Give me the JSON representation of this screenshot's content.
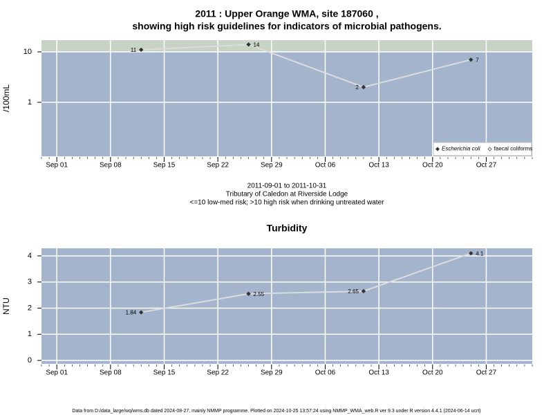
{
  "chart_data": [
    {
      "type": "line",
      "title": [
        "2011 : Upper Orange WMA, site 187060 ,",
        "showing high risk guidelines for indicators of microbial pathogens."
      ],
      "ylabel": "/100mL",
      "log": true,
      "high_risk_above": 10,
      "band_color": "#c6d3c5",
      "x": [
        "2011-09-12",
        "2011-09-26",
        "2011-10-11",
        "2011-10-25"
      ],
      "series": [
        {
          "name": "Escherichia coli",
          "color": "#333333",
          "values": [
            11,
            14,
            2,
            7
          ]
        },
        {
          "name": "faecal coliforms",
          "color": "#333333",
          "values": [
            null,
            null,
            null,
            null
          ]
        }
      ],
      "legend": "bottom right",
      "xlim": [
        "2011-08-30",
        "2011-11-02"
      ],
      "xticks": [
        {
          "value": "2011-09-01",
          "label": "Sep 01"
        },
        {
          "value": "2011-09-08",
          "label": "Sep 08"
        },
        {
          "value": "2011-09-15",
          "label": "Sep 15"
        },
        {
          "value": "2011-09-22",
          "label": "Sep 22"
        },
        {
          "value": "2011-09-29",
          "label": "Sep 29"
        },
        {
          "value": "2011-10-06",
          "label": "Oct 06"
        },
        {
          "value": "2011-10-13",
          "label": "Oct 13"
        },
        {
          "value": "2011-10-20",
          "label": "Oct 20"
        },
        {
          "value": "2011-10-27",
          "label": "Oct 27"
        }
      ],
      "ylim": [
        0.085,
        17.1
      ],
      "yticks": [
        1,
        10
      ],
      "grid": true,
      "notes": [
        "2011-09-01 to 2011-10-31",
        "Tributary of Caledon at Riverside Lodge",
        "<=10 low-med risk; >10 high risk when drinking untreated water"
      ]
    },
    {
      "type": "line",
      "title": [
        "Turbidity"
      ],
      "ylabel": "NTU",
      "log": false,
      "x": [
        "2011-09-12",
        "2011-09-26",
        "2011-10-11",
        "2011-10-25"
      ],
      "series": [
        {
          "color": "#333333",
          "values": [
            1.84,
            2.55,
            2.65,
            4.1
          ]
        }
      ],
      "xlim": [
        "2011-08-30",
        "2011-11-02"
      ],
      "xticks": [
        {
          "value": "2011-09-01",
          "label": "Sep 01"
        },
        {
          "value": "2011-09-08",
          "label": "Sep 08"
        },
        {
          "value": "2011-09-15",
          "label": "Sep 15"
        },
        {
          "value": "2011-09-22",
          "label": "Sep 22"
        },
        {
          "value": "2011-09-29",
          "label": "Sep 29"
        },
        {
          "value": "2011-10-06",
          "label": "Oct 06"
        },
        {
          "value": "2011-10-13",
          "label": "Oct 13"
        },
        {
          "value": "2011-10-20",
          "label": "Oct 20"
        },
        {
          "value": "2011-10-27",
          "label": "Oct 27"
        }
      ],
      "ylim": [
        -0.13,
        4.29
      ],
      "yticks": [
        0,
        1,
        2,
        3,
        4
      ],
      "grid": true
    }
  ],
  "footer": "Data from D:/data_large/wq/wms.db dated 2024-08-27, mainly NMMP programme. Plotted on 2024-10-25 13:57:24 using NMMP_WMA_web.R ver 9.3 under R version 4.4.1 (2024-06-14 ucrt)"
}
